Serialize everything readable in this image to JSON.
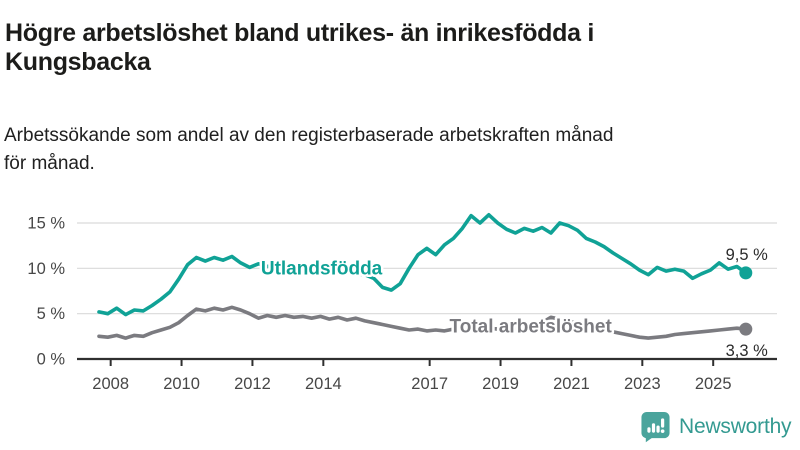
{
  "header": {
    "title": "Högre arbetslöshet bland utrikes- än inrikesfödda i\nKungsbacka",
    "subtitle": "Arbetssökande som andel av den registerbaserade arbetskraften månad\nför månad."
  },
  "footer": {
    "brand": "Newsworthy",
    "brand_text_color": "#349a91",
    "brand_icon_color": "#4aa49c",
    "brand_icon": "bar-chart-speech-bubble"
  },
  "chart_data": {
    "type": "line",
    "title": "Högre arbetslöshet bland utrikes- än inrikesfödda i Kungsbacka",
    "subtitle": "Arbetssökande som andel av den registerbaserade arbetskraften månad för månad.",
    "xlabel": "",
    "ylabel": "",
    "grid": true,
    "legend_position": "inline-labels",
    "x_domain": [
      2007.05,
      2026.8
    ],
    "ylim": [
      0,
      15
    ],
    "colors": {
      "grid": "#d9d9d9",
      "axis": "#2f2f2f",
      "axis_text": "#474747",
      "end_label_text": "#2b2b2b"
    },
    "y_ticks": [
      {
        "v": 0,
        "label": "0 %"
      },
      {
        "v": 5,
        "label": "5 %"
      },
      {
        "v": 10,
        "label": "10 %"
      },
      {
        "v": 15,
        "label": "15 %"
      }
    ],
    "x_ticks": [
      {
        "v": 2008,
        "label": "2008"
      },
      {
        "v": 2010,
        "label": "2010"
      },
      {
        "v": 2012,
        "label": "2012"
      },
      {
        "v": 2014,
        "label": "2014"
      },
      {
        "v": 2017,
        "label": "2017"
      },
      {
        "v": 2019,
        "label": "2019"
      },
      {
        "v": 2021,
        "label": "2021"
      },
      {
        "v": 2023,
        "label": "2023"
      },
      {
        "v": 2025,
        "label": "2025"
      }
    ],
    "series": [
      {
        "id": "utlandsfodda",
        "name": "Utlandsfödda",
        "color": "#10a296",
        "end_label": "9,5 %",
        "end_value": 9.5,
        "label_anchor": {
          "x": 2013.95,
          "y": 10.05
        },
        "end_label_dy": -13,
        "points": [
          [
            2007.67,
            5.2
          ],
          [
            2007.92,
            5.0
          ],
          [
            2008.17,
            5.6
          ],
          [
            2008.42,
            4.9
          ],
          [
            2008.67,
            5.4
          ],
          [
            2008.92,
            5.3
          ],
          [
            2009.17,
            5.9
          ],
          [
            2009.42,
            6.6
          ],
          [
            2009.67,
            7.4
          ],
          [
            2009.92,
            8.8
          ],
          [
            2010.17,
            10.4
          ],
          [
            2010.42,
            11.2
          ],
          [
            2010.67,
            10.8
          ],
          [
            2010.92,
            11.2
          ],
          [
            2011.17,
            10.9
          ],
          [
            2011.42,
            11.3
          ],
          [
            2011.67,
            10.6
          ],
          [
            2011.92,
            10.1
          ],
          [
            2012.17,
            10.5
          ],
          [
            2012.42,
            10.2
          ],
          [
            2012.67,
            10.4
          ],
          [
            2012.92,
            10.1
          ],
          [
            2013.17,
            10.2
          ],
          [
            2013.42,
            9.9
          ],
          [
            2013.67,
            10.1
          ],
          [
            2013.92,
            9.8
          ],
          [
            2014.17,
            9.9
          ],
          [
            2014.42,
            9.7
          ],
          [
            2014.67,
            9.6
          ],
          [
            2014.92,
            9.4
          ],
          [
            2015.17,
            9.3
          ],
          [
            2015.42,
            8.9
          ],
          [
            2015.67,
            7.9
          ],
          [
            2015.92,
            7.6
          ],
          [
            2016.17,
            8.3
          ],
          [
            2016.42,
            10.0
          ],
          [
            2016.67,
            11.5
          ],
          [
            2016.92,
            12.2
          ],
          [
            2017.17,
            11.5
          ],
          [
            2017.42,
            12.6
          ],
          [
            2017.67,
            13.3
          ],
          [
            2017.92,
            14.4
          ],
          [
            2018.17,
            15.8
          ],
          [
            2018.42,
            15.0
          ],
          [
            2018.67,
            15.9
          ],
          [
            2018.92,
            15.0
          ],
          [
            2019.17,
            14.3
          ],
          [
            2019.42,
            13.9
          ],
          [
            2019.67,
            14.4
          ],
          [
            2019.92,
            14.1
          ],
          [
            2020.17,
            14.5
          ],
          [
            2020.42,
            13.9
          ],
          [
            2020.67,
            15.0
          ],
          [
            2020.92,
            14.7
          ],
          [
            2021.17,
            14.2
          ],
          [
            2021.42,
            13.3
          ],
          [
            2021.67,
            12.9
          ],
          [
            2021.92,
            12.4
          ],
          [
            2022.17,
            11.7
          ],
          [
            2022.42,
            11.1
          ],
          [
            2022.67,
            10.5
          ],
          [
            2022.92,
            9.8
          ],
          [
            2023.17,
            9.3
          ],
          [
            2023.42,
            10.1
          ],
          [
            2023.67,
            9.7
          ],
          [
            2023.92,
            9.9
          ],
          [
            2024.17,
            9.7
          ],
          [
            2024.42,
            8.9
          ],
          [
            2024.67,
            9.4
          ],
          [
            2024.92,
            9.8
          ],
          [
            2025.17,
            10.6
          ],
          [
            2025.42,
            9.9
          ],
          [
            2025.67,
            10.2
          ],
          [
            2025.92,
            9.5
          ]
        ]
      },
      {
        "id": "total",
        "name": "Total arbetslöshet",
        "color": "#7b7b80",
        "end_label": "3,3 %",
        "end_value": 3.3,
        "label_anchor": {
          "x": 2019.85,
          "y": 3.62
        },
        "end_label_dy": 27,
        "points": [
          [
            2007.67,
            2.5
          ],
          [
            2007.92,
            2.4
          ],
          [
            2008.17,
            2.6
          ],
          [
            2008.42,
            2.3
          ],
          [
            2008.67,
            2.6
          ],
          [
            2008.92,
            2.5
          ],
          [
            2009.17,
            2.9
          ],
          [
            2009.42,
            3.2
          ],
          [
            2009.67,
            3.5
          ],
          [
            2009.92,
            4.0
          ],
          [
            2010.17,
            4.8
          ],
          [
            2010.42,
            5.5
          ],
          [
            2010.67,
            5.3
          ],
          [
            2010.92,
            5.6
          ],
          [
            2011.17,
            5.4
          ],
          [
            2011.42,
            5.7
          ],
          [
            2011.67,
            5.4
          ],
          [
            2011.92,
            5.0
          ],
          [
            2012.17,
            4.5
          ],
          [
            2012.42,
            4.8
          ],
          [
            2012.67,
            4.6
          ],
          [
            2012.92,
            4.8
          ],
          [
            2013.17,
            4.6
          ],
          [
            2013.42,
            4.7
          ],
          [
            2013.67,
            4.5
          ],
          [
            2013.92,
            4.7
          ],
          [
            2014.17,
            4.4
          ],
          [
            2014.42,
            4.6
          ],
          [
            2014.67,
            4.3
          ],
          [
            2014.92,
            4.5
          ],
          [
            2015.17,
            4.2
          ],
          [
            2015.42,
            4.0
          ],
          [
            2015.67,
            3.8
          ],
          [
            2015.92,
            3.6
          ],
          [
            2016.17,
            3.4
          ],
          [
            2016.42,
            3.2
          ],
          [
            2016.67,
            3.3
          ],
          [
            2016.92,
            3.1
          ],
          [
            2017.17,
            3.2
          ],
          [
            2017.42,
            3.1
          ],
          [
            2017.67,
            3.3
          ],
          [
            2017.92,
            3.2
          ],
          [
            2018.17,
            3.3
          ],
          [
            2018.42,
            3.2
          ],
          [
            2018.67,
            3.4
          ],
          [
            2018.92,
            3.3
          ],
          [
            2019.17,
            3.4
          ],
          [
            2019.42,
            3.3
          ],
          [
            2019.67,
            3.5
          ],
          [
            2019.92,
            3.6
          ],
          [
            2020.17,
            4.0
          ],
          [
            2020.42,
            4.6
          ],
          [
            2020.67,
            4.4
          ],
          [
            2020.92,
            4.2
          ],
          [
            2021.17,
            3.9
          ],
          [
            2021.42,
            3.6
          ],
          [
            2021.67,
            3.4
          ],
          [
            2021.92,
            3.2
          ],
          [
            2022.17,
            3.0
          ],
          [
            2022.42,
            2.8
          ],
          [
            2022.67,
            2.6
          ],
          [
            2022.92,
            2.4
          ],
          [
            2023.17,
            2.3
          ],
          [
            2023.42,
            2.4
          ],
          [
            2023.67,
            2.5
          ],
          [
            2023.92,
            2.7
          ],
          [
            2024.17,
            2.8
          ],
          [
            2024.42,
            2.9
          ],
          [
            2024.67,
            3.0
          ],
          [
            2024.92,
            3.1
          ],
          [
            2025.17,
            3.2
          ],
          [
            2025.42,
            3.3
          ],
          [
            2025.67,
            3.4
          ],
          [
            2025.92,
            3.3
          ]
        ]
      }
    ]
  }
}
